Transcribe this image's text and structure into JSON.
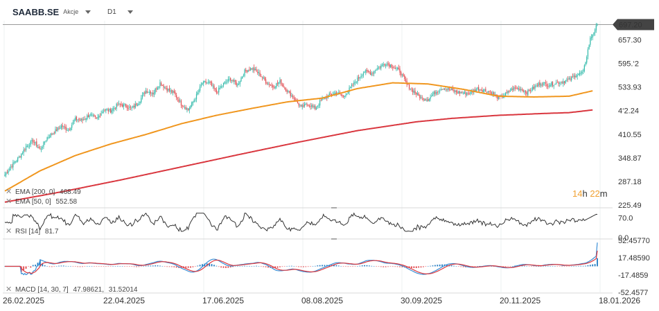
{
  "header": {
    "symbol": "SAABB.SE",
    "type_label": "Akcje",
    "timeframe": "D1"
  },
  "countdown": {
    "hours": "14",
    "h_unit": "h",
    "minutes": "22",
    "m_unit": "m"
  },
  "indicators": {
    "ema200": {
      "label": "EMA [200, 0]",
      "value": "468.49",
      "color": "#d9363e"
    },
    "ema50": {
      "label": "EMA [50, 0]",
      "value": "552.58",
      "color": "#f0961e"
    },
    "rsi": {
      "label": "RSI [14]",
      "value": "81.7"
    },
    "macd": {
      "label": "MACD [14, 30, 7]",
      "value1": "47.98621",
      "value2": "31.52014"
    }
  },
  "colors": {
    "up": "#2bb8a8",
    "down": "#e0474c",
    "ema200": "#d9363e",
    "ema50": "#f0961e",
    "macd_line": "#3a8fd6",
    "signal_line": "#d9363e",
    "hist": "#1f7ac2",
    "last_price_bg": "#444444"
  },
  "chart_data": [
    {
      "type": "candlestick",
      "title": "SAABB.SE D1",
      "last_price": 697.2,
      "y_ticks": [
        "697.20",
        "657.30",
        "595.‘2",
        "533.93",
        "4‘2.24",
        "410.55",
        "348.87",
        "287.18",
        "225.49"
      ],
      "ylim": [
        225.49,
        718
      ],
      "x_ticks": [
        "26.02.2025",
        "22.04.2025",
        "17.06.2025",
        "08.08.2025",
        "30.09.2025",
        "20.11.2025",
        "18.01.2026"
      ],
      "close_path": [
        [
          0,
          305
        ],
        [
          6,
          330
        ],
        [
          12,
          350
        ],
        [
          18,
          378
        ],
        [
          24,
          393
        ],
        [
          30,
          370
        ],
        [
          36,
          402
        ],
        [
          42,
          417
        ],
        [
          48,
          432
        ],
        [
          54,
          422
        ],
        [
          60,
          450
        ],
        [
          66,
          447
        ],
        [
          72,
          462
        ],
        [
          78,
          450
        ],
        [
          84,
          475
        ],
        [
          90,
          472
        ],
        [
          96,
          488
        ],
        [
          102,
          486
        ],
        [
          108,
          478
        ],
        [
          114,
          495
        ],
        [
          120,
          525
        ],
        [
          126,
          518
        ],
        [
          132,
          545
        ],
        [
          138,
          528
        ],
        [
          144,
          517
        ],
        [
          150,
          490
        ],
        [
          156,
          475
        ],
        [
          162,
          505
        ],
        [
          168,
          545
        ],
        [
          174,
          545
        ],
        [
          180,
          520
        ],
        [
          186,
          542
        ],
        [
          192,
          555
        ],
        [
          198,
          540
        ],
        [
          204,
          575
        ],
        [
          210,
          583
        ],
        [
          216,
          570
        ],
        [
          222,
          548
        ],
        [
          228,
          535
        ],
        [
          234,
          548
        ],
        [
          240,
          525
        ],
        [
          246,
          505
        ],
        [
          252,
          480
        ],
        [
          258,
          490
        ],
        [
          264,
          478
        ],
        [
          270,
          503
        ],
        [
          276,
          512
        ],
        [
          282,
          520
        ],
        [
          288,
          508
        ],
        [
          294,
          532
        ],
        [
          300,
          555
        ],
        [
          306,
          575
        ],
        [
          312,
          570
        ],
        [
          318,
          586
        ],
        [
          324,
          596
        ],
        [
          330,
          588
        ],
        [
          336,
          575
        ],
        [
          342,
          540
        ],
        [
          348,
          522
        ],
        [
          354,
          505
        ],
        [
          360,
          502
        ],
        [
          366,
          520
        ],
        [
          372,
          532
        ],
        [
          378,
          528
        ],
        [
          384,
          521
        ],
        [
          390,
          518
        ],
        [
          396,
          518
        ],
        [
          402,
          530
        ],
        [
          408,
          525
        ],
        [
          414,
          520
        ],
        [
          420,
          505
        ],
        [
          426,
          515
        ],
        [
          432,
          530
        ],
        [
          438,
          530
        ],
        [
          444,
          520
        ],
        [
          450,
          532
        ],
        [
          456,
          545
        ],
        [
          462,
          540
        ],
        [
          468,
          544
        ],
        [
          474,
          548
        ],
        [
          480,
          553
        ],
        [
          486,
          566
        ],
        [
          492,
          572
        ],
        [
          498,
          660
        ],
        [
          504,
          697
        ]
      ],
      "ema50_path": [
        [
          0,
          262
        ],
        [
          30,
          315
        ],
        [
          60,
          355
        ],
        [
          90,
          385
        ],
        [
          120,
          410
        ],
        [
          150,
          438
        ],
        [
          180,
          460
        ],
        [
          210,
          478
        ],
        [
          240,
          495
        ],
        [
          270,
          505
        ],
        [
          300,
          530
        ],
        [
          330,
          545
        ],
        [
          360,
          542
        ],
        [
          390,
          528
        ],
        [
          420,
          510
        ],
        [
          450,
          508
        ],
        [
          480,
          510
        ],
        [
          500,
          524
        ]
      ],
      "ema200_path": [
        [
          0,
          233
        ],
        [
          50,
          261
        ],
        [
          100,
          292
        ],
        [
          150,
          325
        ],
        [
          200,
          358
        ],
        [
          250,
          390
        ],
        [
          300,
          420
        ],
        [
          350,
          443
        ],
        [
          380,
          452
        ],
        [
          420,
          460
        ],
        [
          460,
          465
        ],
        [
          480,
          467
        ],
        [
          500,
          474
        ]
      ],
      "rsi": {
        "label": "RSI [14]",
        "ylim": [
          0,
          100
        ],
        "ticks": [
          "70.0",
          "0.0"
        ],
        "last": 81.7
      },
      "macd": {
        "label": "MACD [14, 30, 7]",
        "ticks": [
          "52.45770",
          "17.48590",
          "-17.4859",
          "-52.4577"
        ],
        "ylim": [
          -52.4577,
          52.4577
        ],
        "macd": 47.98621,
        "signal": 31.52014
      }
    }
  ]
}
